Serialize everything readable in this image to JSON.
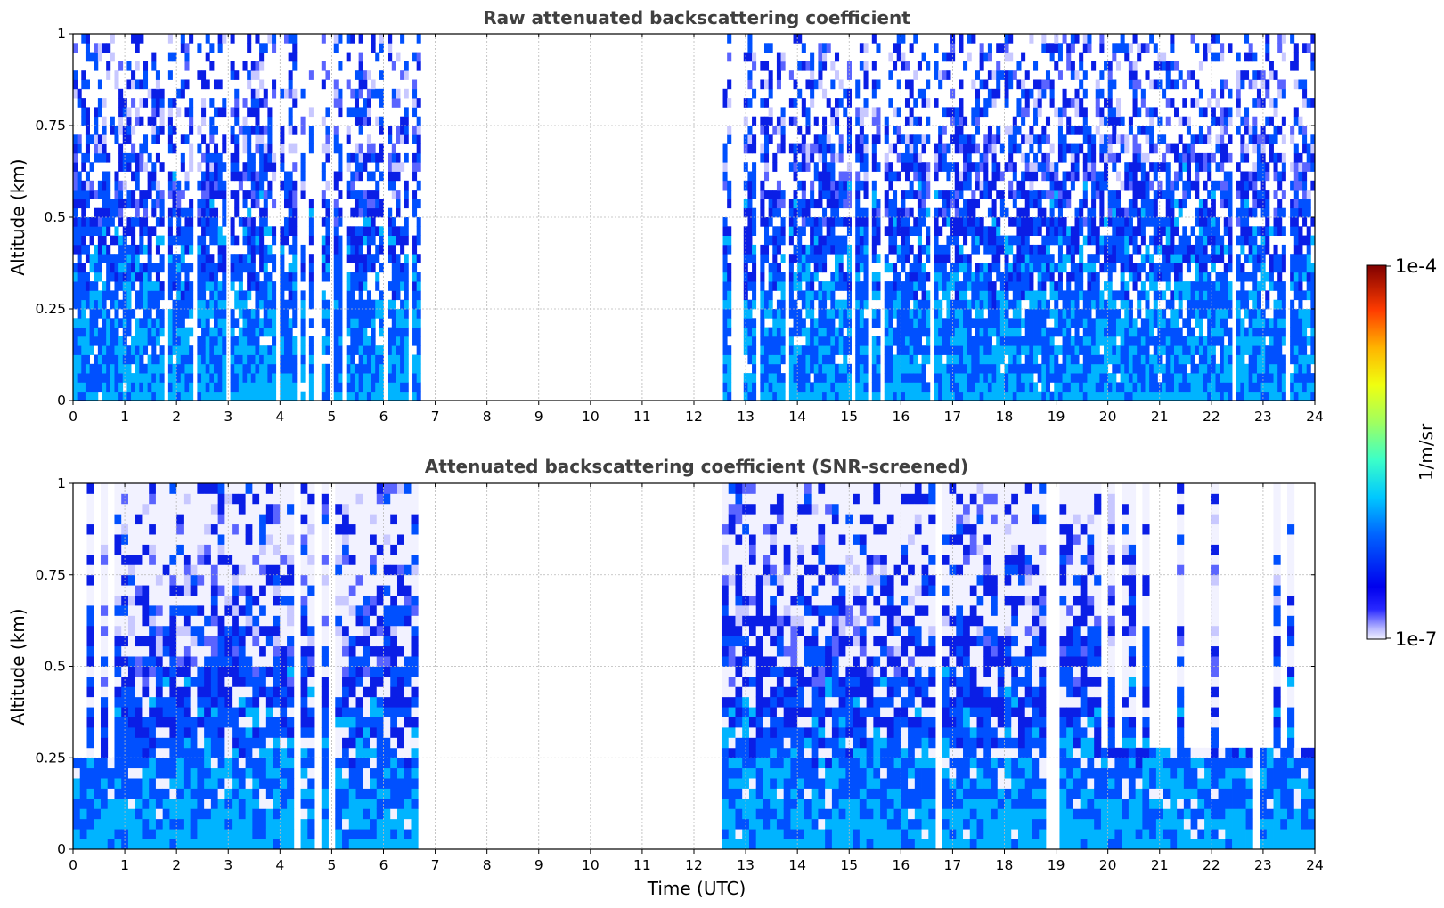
{
  "chart_data": [
    {
      "type": "heatmap",
      "title": "Raw attenuated backscattering coefficient",
      "xlabel": "",
      "ylabel": "Altitude (km)",
      "xlim": [
        0,
        24
      ],
      "ylim": [
        0,
        1
      ],
      "x_ticks": [
        "0",
        "1",
        "2",
        "3",
        "4",
        "5",
        "6",
        "7",
        "8",
        "9",
        "10",
        "11",
        "12",
        "13",
        "14",
        "15",
        "16",
        "17",
        "18",
        "19",
        "20",
        "21",
        "22",
        "23",
        "24"
      ],
      "y_ticks": [
        "0",
        "0.25",
        "0.5",
        "0.75",
        "1"
      ],
      "grid": true,
      "data_coverage_utc": [
        [
          0,
          6.72
        ],
        [
          12.6,
          24
        ]
      ],
      "gap_columns_utc": [
        4.5,
        4.72,
        5.0,
        5.25,
        12.78,
        12.95
      ],
      "signal_profile": [
        {
          "altitude_km": 0.0,
          "log10_value": -6.0
        },
        {
          "altitude_km": 0.05,
          "log10_value": -6.1
        },
        {
          "altitude_km": 0.25,
          "log10_value": -6.15
        },
        {
          "altitude_km": 0.5,
          "log10_value": -6.4
        },
        {
          "altitude_km": 0.75,
          "log10_value": -6.6
        },
        {
          "altitude_km": 1.0,
          "log10_value": -6.75
        }
      ]
    },
    {
      "type": "heatmap",
      "title": "Attenuated backscattering coefficient (SNR-screened)",
      "xlabel": "Time (UTC)",
      "ylabel": "Altitude (km)",
      "xlim": [
        0,
        24
      ],
      "ylim": [
        0,
        1
      ],
      "x_ticks": [
        "0",
        "1",
        "2",
        "3",
        "4",
        "5",
        "6",
        "7",
        "8",
        "9",
        "10",
        "11",
        "12",
        "13",
        "14",
        "15",
        "16",
        "17",
        "18",
        "19",
        "20",
        "21",
        "22",
        "23",
        "24"
      ],
      "y_ticks": [
        "0",
        "0.25",
        "0.5",
        "0.75",
        "1"
      ],
      "grid": true,
      "data_coverage_utc": [
        [
          0,
          6.72
        ],
        [
          12.6,
          24
        ]
      ],
      "screened_top_km": [
        {
          "range_utc": [
            0,
            0.8
          ],
          "top_km": 0.25
        },
        {
          "range_utc": [
            19.9,
            24
          ],
          "top_km": 0.27
        }
      ],
      "signal_profile": [
        {
          "altitude_km": 0.0,
          "log10_value": -6.0
        },
        {
          "altitude_km": 0.25,
          "log10_value": -6.2
        },
        {
          "altitude_km": 0.5,
          "log10_value": -6.45
        },
        {
          "altitude_km": 0.75,
          "log10_value": -6.7
        },
        {
          "altitude_km": 1.0,
          "log10_value": -6.85
        }
      ]
    }
  ],
  "colorbar": {
    "label": "1/m/sr",
    "min_label": "1e-7",
    "max_label": "1e-4",
    "scale": "log",
    "colormap": "jet-like (white at minimum)"
  },
  "colors": {
    "signal_blue": "#0a1ee6",
    "title_gray": "#404040",
    "grid": "#b0b0b0"
  }
}
